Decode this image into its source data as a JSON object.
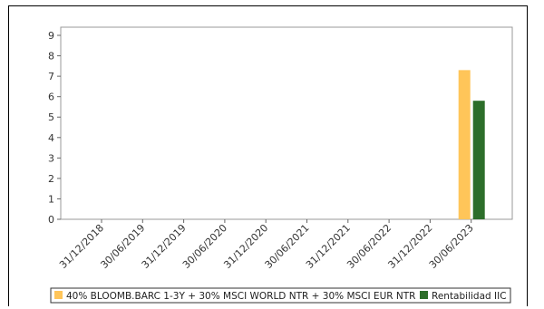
{
  "chart_data": {
    "type": "bar",
    "categories": [
      "31/12/2018",
      "30/06/2019",
      "31/12/2019",
      "30/06/2020",
      "31/12/2020",
      "30/06/2021",
      "31/12/2021",
      "30/06/2022",
      "31/12/2022",
      "30/06/2023"
    ],
    "series": [
      {
        "name": "40% BLOOMB.BARC 1-3Y + 30% MSCI WORLD NTR + 30% MSCI EUR NTR",
        "color": "#ffc559",
        "values": [
          null,
          null,
          null,
          null,
          null,
          null,
          null,
          null,
          null,
          7.3
        ]
      },
      {
        "name": "Rentabilidad IIC",
        "color": "#2d6e2a",
        "values": [
          null,
          null,
          null,
          null,
          null,
          null,
          null,
          null,
          null,
          5.8
        ]
      }
    ],
    "yticks": [
      0,
      1,
      2,
      3,
      4,
      5,
      6,
      7,
      8,
      9
    ],
    "ylim": [
      0,
      9.4
    ],
    "legend_position": "bottom",
    "grid": false
  }
}
